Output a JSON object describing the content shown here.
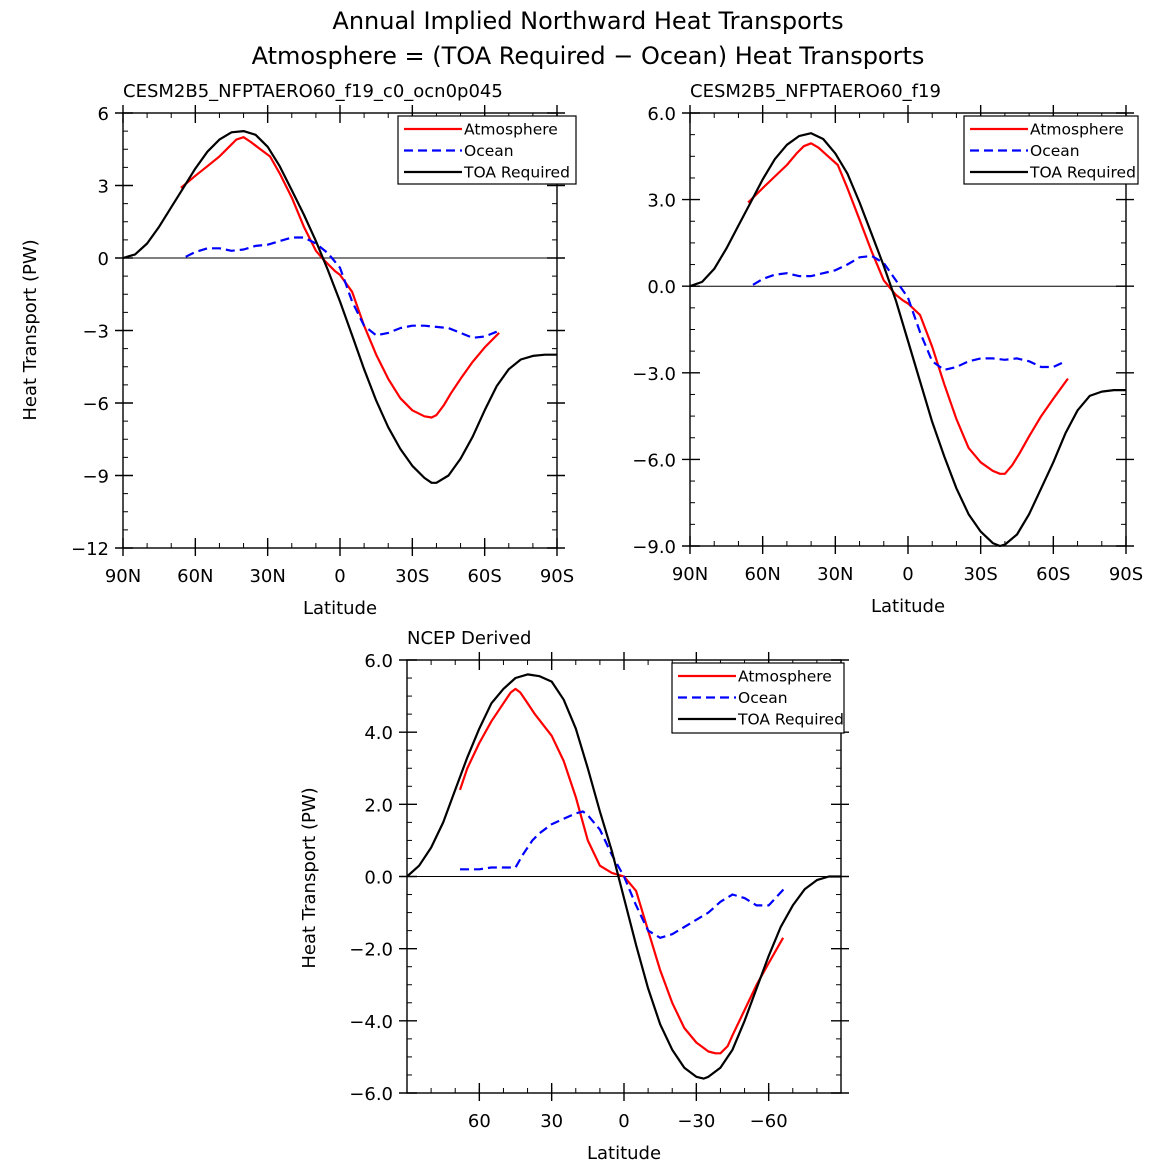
{
  "figure": {
    "title_line1": "Annual Implied Northward Heat Transports",
    "title_line2": "Atmosphere = (TOA Required − Ocean) Heat Transports"
  },
  "colors": {
    "atmosphere": "#ff0000",
    "ocean": "#0000ff",
    "toa": "#000000"
  },
  "legend": {
    "atmosphere": "Atmosphere",
    "ocean": "Ocean",
    "toa": "TOA Required"
  },
  "chart_data": [
    {
      "type": "line",
      "title": "CESM2B5_NFPTAERO60_f19_c0_ocn0p045",
      "xlabel": "Latitude",
      "ylabel": "Heat Transport (PW)",
      "xlim": [
        90,
        -90
      ],
      "ylim": [
        -12,
        6
      ],
      "xticks": [
        90,
        60,
        30,
        0,
        -30,
        -60,
        -90
      ],
      "xtick_labels": [
        "90N",
        "60N",
        "30N",
        "0",
        "30S",
        "60S",
        "90S"
      ],
      "yticks": [
        6,
        3,
        0,
        -3,
        -6,
        -9,
        -12
      ],
      "ytick_labels": [
        "6",
        "3",
        "0",
        "−3",
        "−6",
        "−9",
        "−12"
      ],
      "series": [
        {
          "name": "Atmosphere",
          "key": "atmosphere",
          "dashed": false,
          "x": [
            66,
            60,
            55,
            50,
            46,
            43,
            40,
            37,
            33,
            29,
            25,
            20,
            15,
            10,
            7,
            5,
            2,
            0,
            -5,
            -10,
            -15,
            -20,
            -25,
            -30,
            -35,
            -38,
            -40,
            -43,
            -46,
            -50,
            -55,
            -60,
            -66
          ],
          "y": [
            2.9,
            3.4,
            3.8,
            4.2,
            4.6,
            4.9,
            5.0,
            4.8,
            4.5,
            4.2,
            3.5,
            2.5,
            1.3,
            0.3,
            -0.05,
            -0.25,
            -0.55,
            -0.7,
            -1.4,
            -2.8,
            -4.0,
            -5.0,
            -5.8,
            -6.3,
            -6.55,
            -6.6,
            -6.5,
            -6.1,
            -5.6,
            -5.0,
            -4.3,
            -3.7,
            -3.1
          ]
        },
        {
          "name": "Ocean",
          "key": "ocean",
          "dashed": true,
          "x": [
            64,
            60,
            55,
            50,
            45,
            40,
            35,
            30,
            25,
            20,
            15,
            10,
            5,
            0,
            -5,
            -10,
            -15,
            -20,
            -25,
            -30,
            -35,
            -40,
            -45,
            -50,
            -55,
            -60,
            -65
          ],
          "y": [
            0.05,
            0.25,
            0.4,
            0.4,
            0.3,
            0.35,
            0.5,
            0.55,
            0.7,
            0.85,
            0.85,
            0.6,
            0.2,
            -0.4,
            -1.8,
            -2.8,
            -3.2,
            -3.1,
            -2.9,
            -2.8,
            -2.8,
            -2.85,
            -2.9,
            -3.1,
            -3.3,
            -3.25,
            -3.05
          ]
        },
        {
          "name": "TOA Required",
          "key": "toa",
          "dashed": false,
          "x": [
            90,
            85,
            80,
            75,
            70,
            65,
            60,
            55,
            50,
            45,
            40,
            35,
            30,
            25,
            20,
            15,
            10,
            5,
            0,
            -5,
            -10,
            -15,
            -20,
            -25,
            -30,
            -35,
            -38,
            -40,
            -45,
            -50,
            -55,
            -60,
            -65,
            -70,
            -75,
            -80,
            -85,
            -90
          ],
          "y": [
            0.0,
            0.15,
            0.6,
            1.3,
            2.1,
            2.9,
            3.7,
            4.4,
            4.9,
            5.2,
            5.25,
            5.1,
            4.6,
            3.8,
            2.8,
            1.8,
            0.7,
            -0.5,
            -1.8,
            -3.2,
            -4.6,
            -5.9,
            -7.0,
            -7.9,
            -8.6,
            -9.1,
            -9.3,
            -9.3,
            -9.0,
            -8.3,
            -7.4,
            -6.3,
            -5.3,
            -4.6,
            -4.2,
            -4.05,
            -4.0,
            -4.0
          ]
        }
      ]
    },
    {
      "type": "line",
      "title": "CESM2B5_NFPTAERO60_f19",
      "xlabel": "Latitude",
      "ylabel": "",
      "xlim": [
        90,
        -90
      ],
      "ylim": [
        -9,
        6
      ],
      "xticks": [
        90,
        60,
        30,
        0,
        -30,
        -60,
        -90
      ],
      "xtick_labels": [
        "90N",
        "60N",
        "30N",
        "0",
        "30S",
        "60S",
        "90S"
      ],
      "yticks": [
        6,
        3,
        0,
        -3,
        -6,
        -9
      ],
      "ytick_labels": [
        "6.0",
        "3.0",
        "0.0",
        "−3.0",
        "−6.0",
        "−9.0"
      ],
      "series": [
        {
          "name": "Atmosphere",
          "key": "atmosphere",
          "dashed": false,
          "x": [
            66,
            60,
            55,
            50,
            46,
            43,
            40,
            37,
            33,
            29,
            25,
            20,
            15,
            10,
            7,
            5,
            2,
            0,
            -5,
            -10,
            -15,
            -20,
            -25,
            -30,
            -35,
            -38,
            -40,
            -43,
            -46,
            -50,
            -55,
            -60,
            -66
          ],
          "y": [
            2.9,
            3.4,
            3.8,
            4.2,
            4.6,
            4.85,
            4.95,
            4.8,
            4.5,
            4.2,
            3.4,
            2.3,
            1.2,
            0.2,
            -0.1,
            -0.3,
            -0.5,
            -0.6,
            -1.0,
            -2.1,
            -3.4,
            -4.6,
            -5.6,
            -6.1,
            -6.4,
            -6.5,
            -6.5,
            -6.2,
            -5.8,
            -5.2,
            -4.5,
            -3.9,
            -3.2
          ]
        },
        {
          "name": "Ocean",
          "key": "ocean",
          "dashed": true,
          "x": [
            64,
            60,
            55,
            50,
            45,
            40,
            35,
            30,
            25,
            20,
            15,
            10,
            5,
            0,
            -5,
            -10,
            -15,
            -20,
            -25,
            -30,
            -35,
            -40,
            -45,
            -50,
            -55,
            -60,
            -65
          ],
          "y": [
            0.05,
            0.25,
            0.4,
            0.45,
            0.35,
            0.35,
            0.45,
            0.55,
            0.75,
            1.0,
            1.05,
            0.8,
            0.2,
            -0.4,
            -1.6,
            -2.6,
            -2.9,
            -2.8,
            -2.6,
            -2.5,
            -2.5,
            -2.55,
            -2.5,
            -2.6,
            -2.8,
            -2.8,
            -2.6
          ]
        },
        {
          "name": "TOA Required",
          "key": "toa",
          "dashed": false,
          "x": [
            90,
            85,
            80,
            75,
            70,
            65,
            60,
            55,
            50,
            45,
            40,
            35,
            30,
            25,
            20,
            15,
            10,
            5,
            0,
            -5,
            -10,
            -15,
            -20,
            -25,
            -30,
            -35,
            -38,
            -40,
            -45,
            -50,
            -55,
            -60,
            -65,
            -70,
            -75,
            -80,
            -85,
            -90
          ],
          "y": [
            0.0,
            0.15,
            0.6,
            1.3,
            2.1,
            2.9,
            3.7,
            4.4,
            4.9,
            5.2,
            5.3,
            5.1,
            4.6,
            3.9,
            2.9,
            1.8,
            0.7,
            -0.5,
            -1.9,
            -3.3,
            -4.7,
            -5.9,
            -7.0,
            -7.9,
            -8.5,
            -8.9,
            -9.0,
            -8.95,
            -8.6,
            -7.9,
            -7.0,
            -6.1,
            -5.1,
            -4.3,
            -3.8,
            -3.65,
            -3.6,
            -3.6
          ]
        }
      ]
    },
    {
      "type": "line",
      "title": "NCEP Derived",
      "xlabel": "Latitude",
      "ylabel": "Heat Transport (PW)",
      "xlim": [
        90,
        -90
      ],
      "ylim": [
        -6,
        6
      ],
      "xticks": [
        60,
        30,
        0,
        -30,
        -60
      ],
      "xtick_labels": [
        "60",
        "30",
        "0",
        "−30",
        "−60"
      ],
      "yticks": [
        6,
        4,
        2,
        0,
        -2,
        -4,
        -6
      ],
      "ytick_labels": [
        "6.0",
        "4.0",
        "2.0",
        "0.0",
        "−2.0",
        "−4.0",
        "−6.0"
      ],
      "series": [
        {
          "name": "Atmosphere",
          "key": "atmosphere",
          "dashed": false,
          "x": [
            68,
            65,
            60,
            55,
            50,
            47,
            45,
            43,
            40,
            37,
            30,
            25,
            20,
            15,
            10,
            5,
            0,
            -5,
            -10,
            -15,
            -20,
            -25,
            -30,
            -35,
            -38,
            -40,
            -43,
            -45,
            -50,
            -55,
            -60,
            -66
          ],
          "y": [
            2.4,
            3.0,
            3.7,
            4.3,
            4.8,
            5.1,
            5.2,
            5.1,
            4.8,
            4.5,
            3.9,
            3.2,
            2.2,
            1.0,
            0.3,
            0.1,
            0.0,
            -0.4,
            -1.5,
            -2.6,
            -3.5,
            -4.2,
            -4.6,
            -4.85,
            -4.9,
            -4.9,
            -4.7,
            -4.4,
            -3.7,
            -3.0,
            -2.4,
            -1.7
          ]
        },
        {
          "name": "Ocean",
          "key": "ocean",
          "dashed": true,
          "x": [
            68,
            60,
            55,
            50,
            45,
            42,
            38,
            35,
            30,
            25,
            20,
            17,
            15,
            10,
            5,
            0,
            -5,
            -10,
            -15,
            -20,
            -25,
            -30,
            -35,
            -40,
            -45,
            -50,
            -55,
            -60,
            -67
          ],
          "y": [
            0.2,
            0.2,
            0.25,
            0.25,
            0.25,
            0.6,
            1.0,
            1.2,
            1.45,
            1.6,
            1.75,
            1.8,
            1.7,
            1.3,
            0.6,
            0.0,
            -0.8,
            -1.5,
            -1.7,
            -1.6,
            -1.4,
            -1.2,
            -1.0,
            -0.7,
            -0.5,
            -0.6,
            -0.8,
            -0.8,
            -0.3
          ]
        },
        {
          "name": "TOA Required",
          "key": "toa",
          "dashed": false,
          "x": [
            90,
            85,
            80,
            75,
            70,
            65,
            60,
            55,
            50,
            45,
            40,
            35,
            30,
            25,
            20,
            15,
            10,
            5,
            0,
            -5,
            -10,
            -15,
            -20,
            -25,
            -30,
            -33,
            -35,
            -40,
            -45,
            -50,
            -55,
            -60,
            -65,
            -70,
            -75,
            -80,
            -85,
            -90
          ],
          "y": [
            0.0,
            0.3,
            0.8,
            1.5,
            2.4,
            3.3,
            4.1,
            4.8,
            5.2,
            5.5,
            5.6,
            5.55,
            5.4,
            4.9,
            4.1,
            3.0,
            1.8,
            0.7,
            -0.6,
            -1.9,
            -3.1,
            -4.1,
            -4.8,
            -5.3,
            -5.55,
            -5.6,
            -5.55,
            -5.3,
            -4.8,
            -4.0,
            -3.1,
            -2.2,
            -1.4,
            -0.8,
            -0.35,
            -0.1,
            0.0,
            0.0
          ]
        }
      ]
    }
  ]
}
